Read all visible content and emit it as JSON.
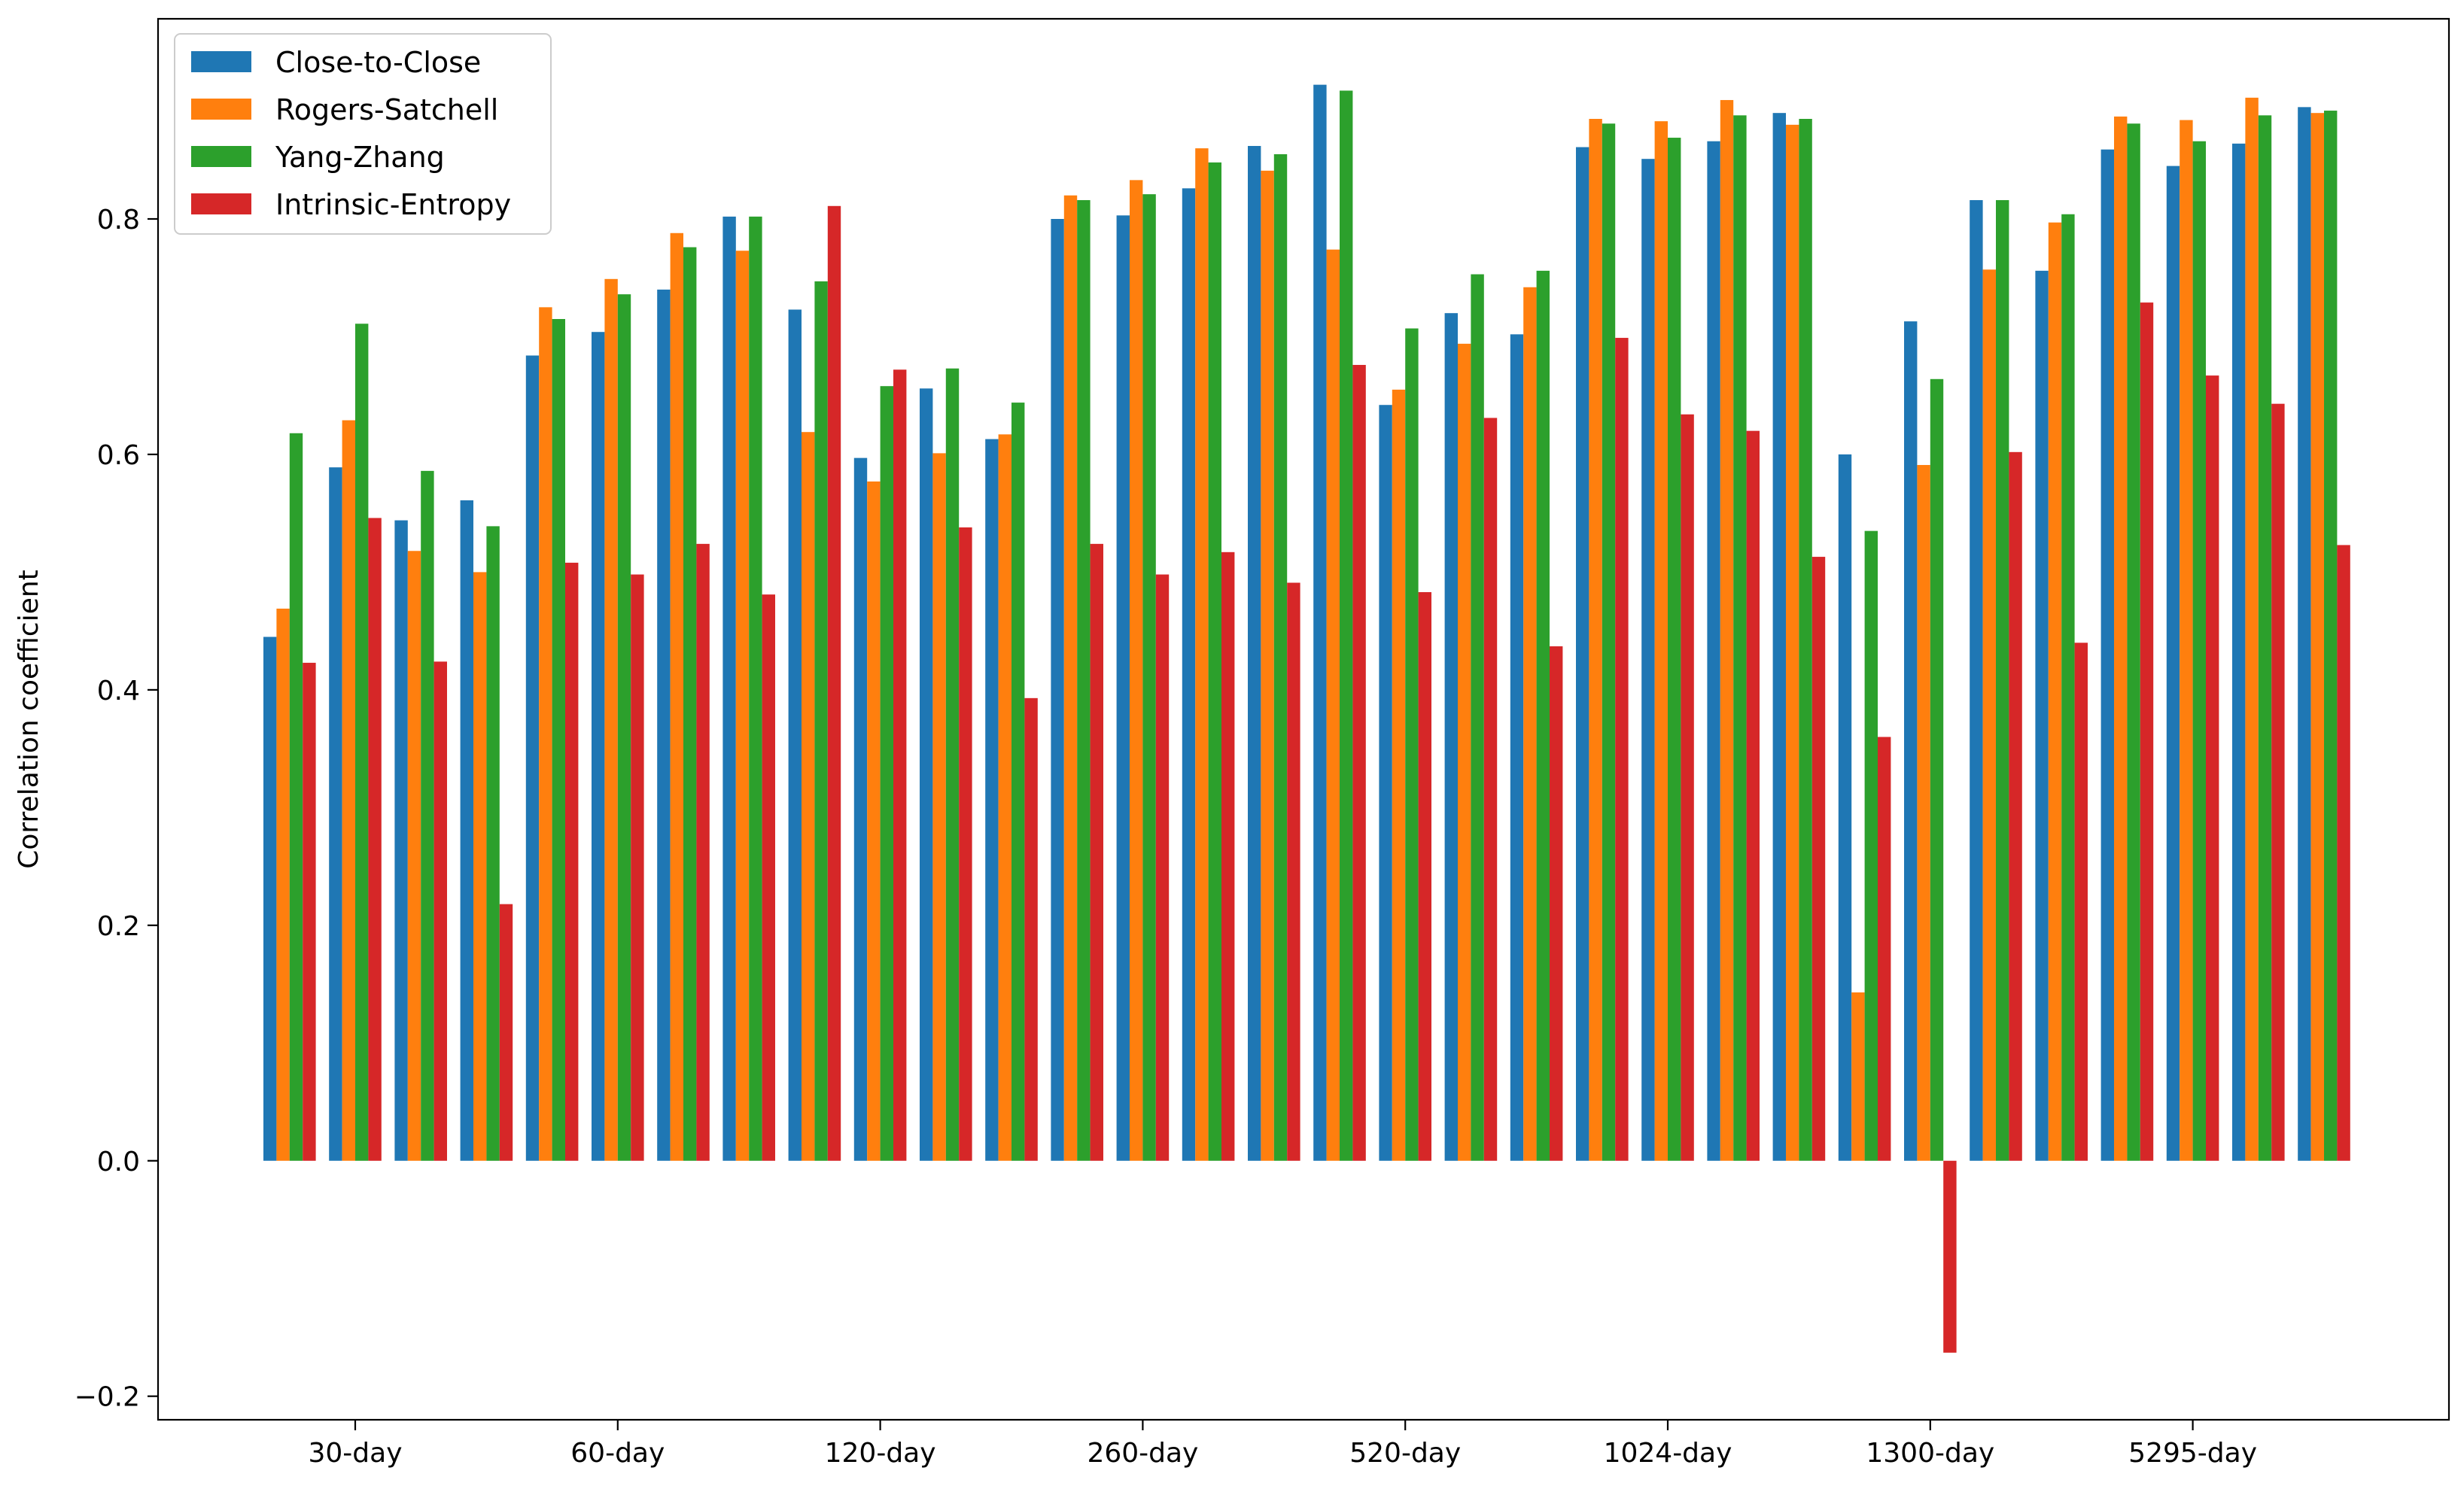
{
  "chart_data": {
    "type": "bar",
    "title": "",
    "xlabel": "",
    "ylabel": "Correlation coefficient",
    "ylim": [
      -0.22,
      0.97
    ],
    "yticks": [
      -0.2,
      0.0,
      0.2,
      0.4,
      0.6,
      0.8
    ],
    "ytick_labels": [
      "−0.2",
      "0.0",
      "0.2",
      "0.4",
      "0.6",
      "0.8"
    ],
    "xtick_labels": [
      "30-day",
      "60-day",
      "120-day",
      "260-day",
      "520-day",
      "1024-day",
      "1300-day",
      "5295-day"
    ],
    "xtick_group_indices": [
      1,
      5,
      9,
      13,
      17,
      21,
      25,
      29
    ],
    "group_count": 32,
    "grid": false,
    "legend_position": "upper-left",
    "series": [
      {
        "name": "Close-to-Close",
        "color": "#1f77b4",
        "values": [
          0.445,
          0.589,
          0.544,
          0.561,
          0.684,
          0.704,
          0.74,
          0.802,
          0.723,
          0.597,
          0.656,
          0.613,
          0.8,
          0.803,
          0.826,
          0.862,
          0.914,
          0.642,
          0.72,
          0.702,
          0.861,
          0.851,
          0.866,
          0.89,
          0.6,
          0.713,
          0.816,
          0.756,
          0.859,
          0.845,
          0.864,
          0.895
        ]
      },
      {
        "name": "Rogers-Satchell",
        "color": "#ff7f0e",
        "values": [
          0.469,
          0.629,
          0.518,
          0.5,
          0.725,
          0.749,
          0.788,
          0.773,
          0.619,
          0.577,
          0.601,
          0.617,
          0.82,
          0.833,
          0.86,
          0.841,
          0.774,
          0.655,
          0.694,
          0.742,
          0.885,
          0.883,
          0.901,
          0.88,
          0.143,
          0.591,
          0.757,
          0.797,
          0.887,
          0.884,
          0.903,
          0.89
        ]
      },
      {
        "name": "Yang-Zhang",
        "color": "#2ca02c",
        "values": [
          0.618,
          0.711,
          0.586,
          0.539,
          0.715,
          0.736,
          0.776,
          0.802,
          0.747,
          0.658,
          0.673,
          0.644,
          0.816,
          0.821,
          0.848,
          0.855,
          0.909,
          0.707,
          0.753,
          0.756,
          0.881,
          0.869,
          0.888,
          0.885,
          0.535,
          0.664,
          0.816,
          0.804,
          0.881,
          0.866,
          0.888,
          0.892
        ]
      },
      {
        "name": "Intrinsic-Entropy",
        "color": "#d62728",
        "values": [
          0.423,
          0.546,
          0.424,
          0.218,
          0.508,
          0.498,
          0.524,
          0.481,
          0.811,
          0.672,
          0.538,
          0.393,
          0.524,
          0.498,
          0.517,
          0.491,
          0.676,
          0.483,
          0.631,
          0.437,
          0.699,
          0.634,
          0.62,
          0.513,
          0.36,
          -0.163,
          0.602,
          0.44,
          0.729,
          0.667,
          0.643,
          0.523
        ]
      }
    ]
  }
}
